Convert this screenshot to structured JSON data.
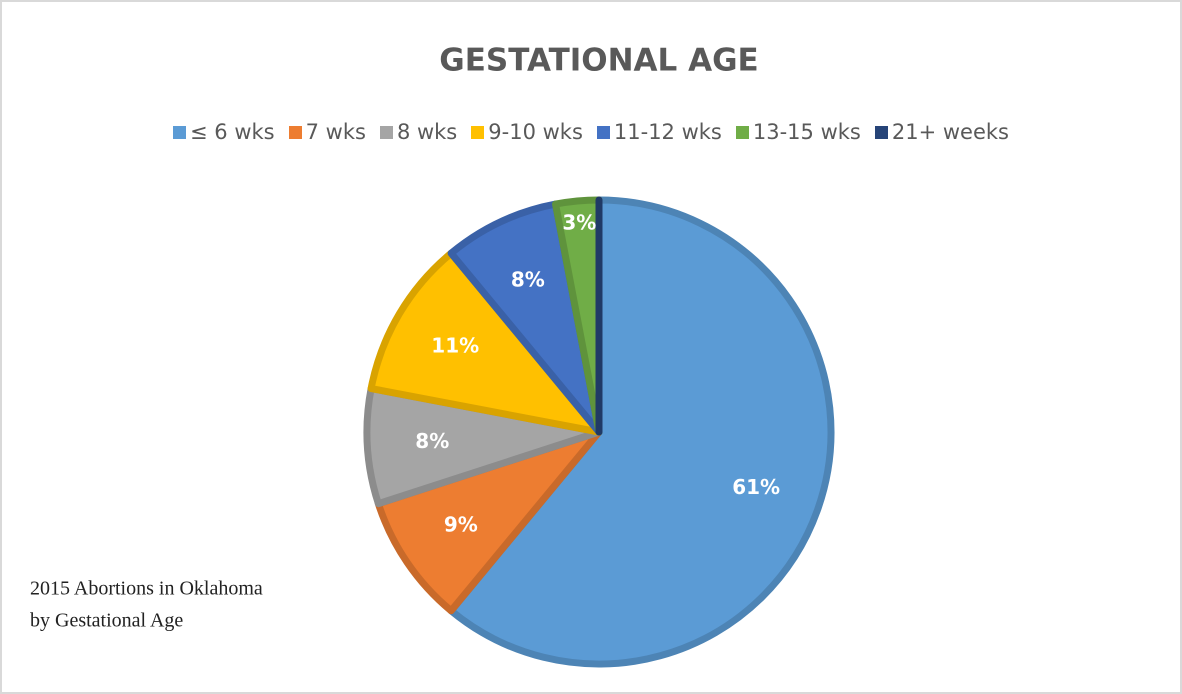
{
  "chart_data": {
    "type": "pie",
    "title": "GESTATIONAL AGE",
    "categories": [
      "≤ 6 wks",
      "7 wks",
      "8 wks",
      "9-10 wks",
      "11-12 wks",
      "13-15 wks",
      "21+ weeks"
    ],
    "values": [
      61,
      9,
      8,
      11,
      8,
      3,
      0
    ],
    "value_labels": [
      "61%",
      "9%",
      "8%",
      "11%",
      "8%",
      "3%",
      null
    ],
    "colors": [
      "#5b9bd5",
      "#ed7d31",
      "#a5a5a5",
      "#ffc000",
      "#4472c4",
      "#70ad47",
      "#264478"
    ],
    "legend": "top",
    "annotation": [
      "2015 Abortions in Oklahoma",
      "by Gestational Age"
    ]
  }
}
